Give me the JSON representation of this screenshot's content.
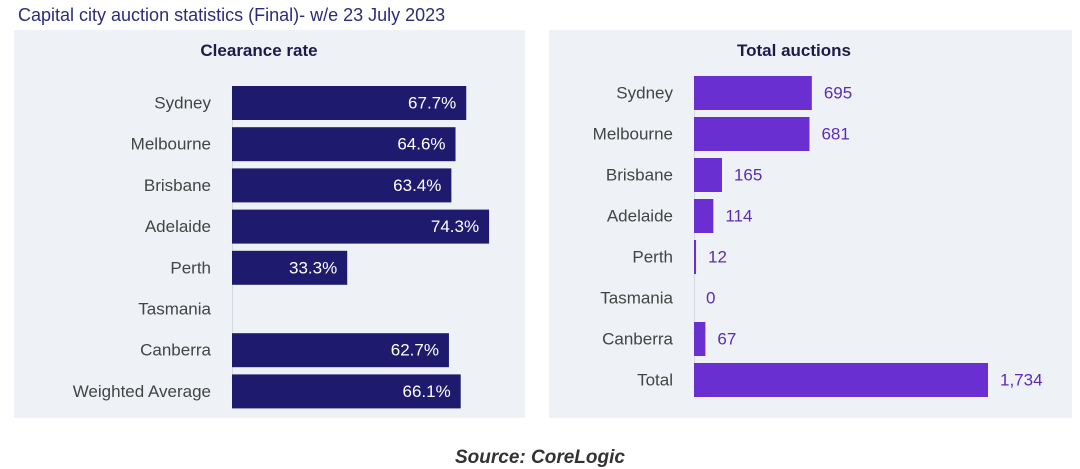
{
  "page": {
    "title": "Capital city auction statistics (Final)- w/e 23 July 2023",
    "source": "Source: CoreLogic"
  },
  "colors": {
    "clearance_bar": "#1e1b6e",
    "auctions_bar": "#6a2fd1",
    "auctions_label": "#5b2bb8",
    "panel_bg": "#eef1f5",
    "category_text": "#444444"
  },
  "chart_data": [
    {
      "type": "bar",
      "orientation": "horizontal",
      "title": "Clearance rate",
      "categories": [
        "Sydney",
        "Melbourne",
        "Brisbane",
        "Adelaide",
        "Perth",
        "Tasmania",
        "Canberra",
        "Weighted Average"
      ],
      "values": [
        67.7,
        64.6,
        63.4,
        74.3,
        33.3,
        null,
        62.7,
        66.1
      ],
      "labels": [
        "67.7%",
        "64.6%",
        "63.4%",
        "74.3%",
        "33.3%",
        "",
        "62.7%",
        "66.1%"
      ],
      "xlim": [
        0,
        100
      ],
      "grid": false,
      "data_label_position": "inside-end"
    },
    {
      "type": "bar",
      "orientation": "horizontal",
      "title": "Total auctions",
      "categories": [
        "Sydney",
        "Melbourne",
        "Brisbane",
        "Adelaide",
        "Perth",
        "Tasmania",
        "Canberra",
        "Total"
      ],
      "values": [
        695,
        681,
        165,
        114,
        12,
        0,
        67,
        1734
      ],
      "labels": [
        "695",
        "681",
        "165",
        "114",
        "12",
        "0",
        "67",
        "1,734"
      ],
      "xlim": [
        0,
        1734
      ],
      "grid": false,
      "data_label_position": "outside-end"
    }
  ]
}
